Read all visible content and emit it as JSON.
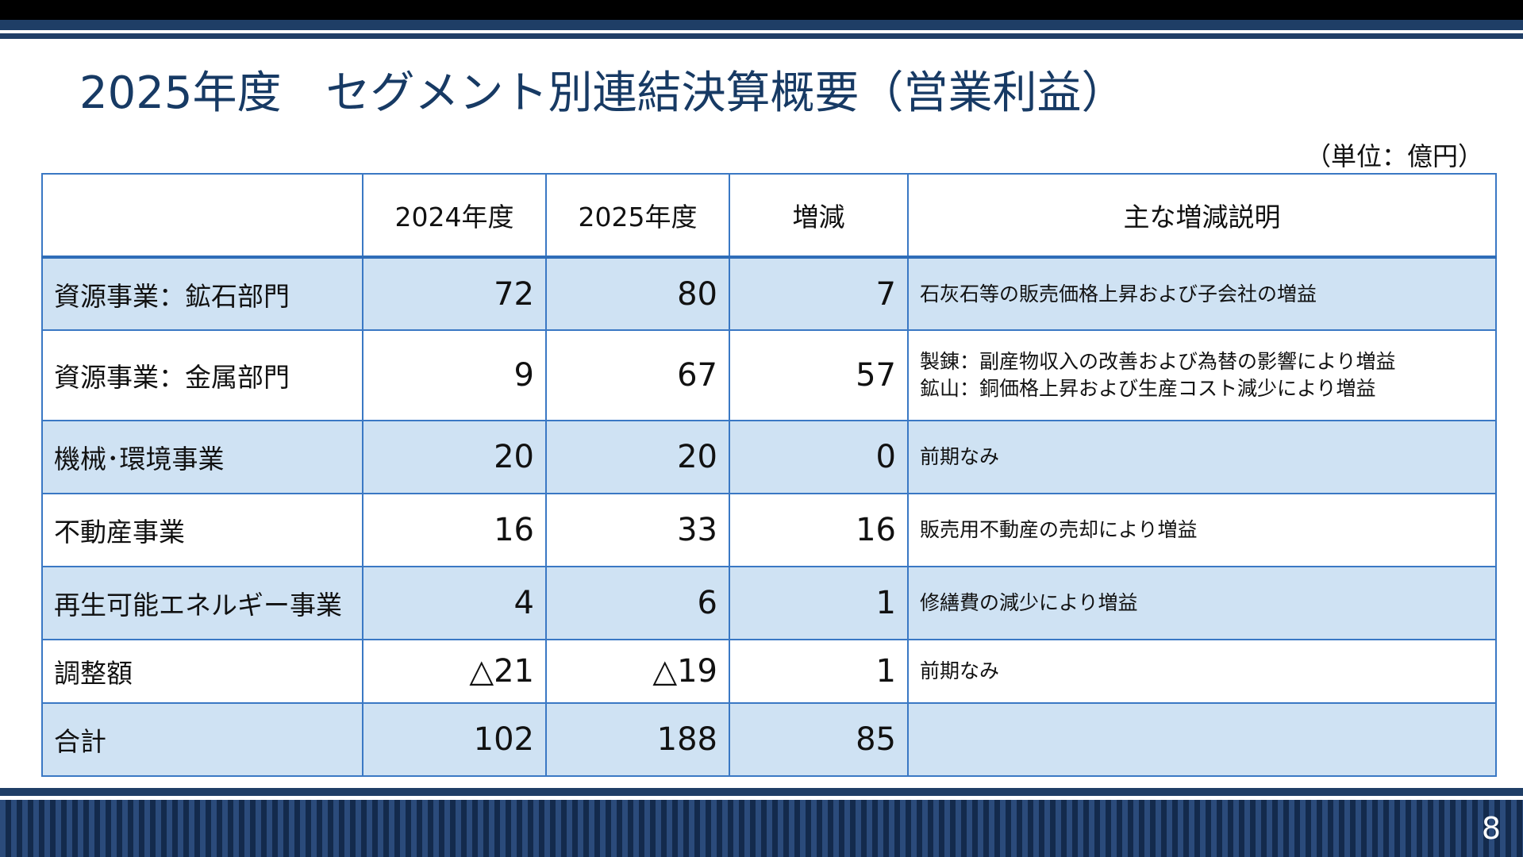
{
  "slide": {
    "title": "2025年度　セグメント別連結決算概要（営業利益）",
    "unit": "（単位：億円）",
    "page_number": "8"
  },
  "table": {
    "headers": [
      "",
      "2024年度",
      "2025年度",
      "増減",
      "主な増減説明"
    ],
    "rows": [
      {
        "segment": "資源事業：鉱石部門",
        "fy2024": "72",
        "fy2025": "80",
        "change": "7",
        "notes": [
          "石灰石等の販売価格上昇および子会社の増益"
        ]
      },
      {
        "segment": "資源事業：金属部門",
        "fy2024": "9",
        "fy2025": "67",
        "change": "57",
        "notes": [
          "製錬：副産物収入の改善および為替の影響により増益",
          "鉱山：銅価格上昇および生産コスト減少により増益"
        ]
      },
      {
        "segment": "機械･環境事業",
        "fy2024": "20",
        "fy2025": "20",
        "change": "0",
        "notes": [
          "前期なみ"
        ]
      },
      {
        "segment": "不動産事業",
        "fy2024": "16",
        "fy2025": "33",
        "change": "16",
        "notes": [
          "販売用不動産の売却により増益"
        ]
      },
      {
        "segment": "再生可能エネルギー事業",
        "fy2024": "4",
        "fy2025": "6",
        "change": "1",
        "notes": [
          "修繕費の減少により増益"
        ]
      },
      {
        "segment": "調整額",
        "fy2024": "△21",
        "fy2025": "△19",
        "change": "1",
        "notes": [
          "前期なみ"
        ]
      },
      {
        "segment": "合計",
        "fy2024": "102",
        "fy2025": "188",
        "change": "85",
        "notes": [
          ""
        ]
      }
    ]
  },
  "colors": {
    "title": "#173a64",
    "frame": "#1f3e66",
    "row_shade": "#cfe2f3",
    "grid": "#3a78c4"
  }
}
